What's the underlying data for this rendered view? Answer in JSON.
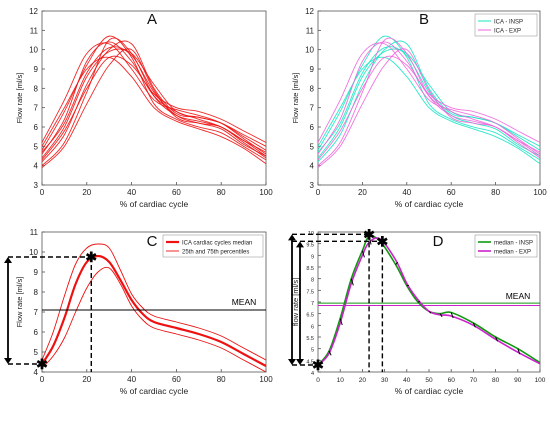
{
  "figure": {
    "panels": [
      {
        "letter": "A"
      },
      {
        "letter": "B"
      },
      {
        "letter": "C"
      },
      {
        "letter": "D"
      }
    ]
  },
  "colors": {
    "red": "#ee1111",
    "cyan": "#18e6c4",
    "magenta": "#ee66dd",
    "green": "#119911",
    "purple": "#cc22cc",
    "axis": "#555555",
    "black": "#000000"
  },
  "chart_data": [
    {
      "panel": "A",
      "type": "line",
      "xlabel": "% of cardiac cycle",
      "ylabel": "Flow rate [ml/s]",
      "xlim": [
        0,
        100
      ],
      "ylim": [
        3,
        12
      ],
      "xticks": [
        0,
        20,
        40,
        60,
        80,
        100
      ],
      "yticks": [
        3,
        4,
        5,
        6,
        7,
        8,
        9,
        10,
        11,
        12
      ],
      "series": [
        {
          "values": [
            4.4,
            6.0,
            8.6,
            9.9,
            9.8,
            8.2,
            6.8,
            6.5,
            6.2,
            5.5,
            4.8
          ]
        },
        {
          "values": [
            4.0,
            5.2,
            7.8,
            10.5,
            9.8,
            7.6,
            6.6,
            6.3,
            6.0,
            5.3,
            4.5
          ]
        },
        {
          "values": [
            4.8,
            6.8,
            9.2,
            10.7,
            9.6,
            7.2,
            6.4,
            6.0,
            5.7,
            5.0,
            4.3
          ]
        },
        {
          "values": [
            5.2,
            7.4,
            9.8,
            10.3,
            9.0,
            7.4,
            6.9,
            6.6,
            6.2,
            5.4,
            4.6
          ]
        },
        {
          "values": [
            4.2,
            5.6,
            8.2,
            10.0,
            10.3,
            8.0,
            6.7,
            6.5,
            6.2,
            5.6,
            5.0
          ]
        },
        {
          "values": [
            3.9,
            5.0,
            7.2,
            9.2,
            10.0,
            7.9,
            6.5,
            6.2,
            6.0,
            5.2,
            4.4
          ]
        },
        {
          "values": [
            5.0,
            7.0,
            9.0,
            9.6,
            8.6,
            7.0,
            6.3,
            5.9,
            5.5,
            4.9,
            4.1
          ]
        },
        {
          "values": [
            4.6,
            6.4,
            9.4,
            10.4,
            9.4,
            7.6,
            6.8,
            6.4,
            6.0,
            5.3,
            4.7
          ]
        },
        {
          "values": [
            4.3,
            5.8,
            8.0,
            9.6,
            9.2,
            7.7,
            7.0,
            6.8,
            6.4,
            5.8,
            5.2
          ]
        },
        {
          "values": [
            4.7,
            6.2,
            8.8,
            10.1,
            9.7,
            7.8,
            6.6,
            6.2,
            5.9,
            5.1,
            4.5
          ]
        }
      ]
    },
    {
      "panel": "B",
      "type": "line",
      "xlabel": "% of cardiac cycle",
      "ylabel": "Flow rate [ml/s]",
      "xlim": [
        0,
        100
      ],
      "ylim": [
        3,
        12
      ],
      "xticks": [
        0,
        20,
        40,
        60,
        80,
        100
      ],
      "yticks": [
        3,
        4,
        5,
        6,
        7,
        8,
        9,
        10,
        11,
        12
      ],
      "legend": {
        "position": "top-right",
        "entries": [
          "ICA - INSP",
          "ICA - EXP"
        ]
      },
      "series": [
        {
          "name": "ICA - INSP",
          "curves": [
            [
              4.4,
              6.0,
              8.6,
              9.9,
              9.8,
              8.2,
              6.8,
              6.5,
              6.2,
              5.5,
              4.8
            ],
            [
              4.8,
              6.8,
              9.2,
              10.7,
              9.6,
              7.2,
              6.4,
              6.0,
              5.7,
              5.0,
              4.3
            ],
            [
              4.2,
              5.6,
              8.2,
              10.0,
              10.3,
              8.0,
              6.7,
              6.5,
              6.2,
              5.6,
              5.0
            ],
            [
              5.0,
              7.0,
              9.0,
              9.6,
              8.6,
              7.0,
              6.3,
              5.9,
              5.5,
              4.9,
              4.1
            ],
            [
              4.7,
              6.2,
              8.8,
              10.1,
              9.7,
              7.8,
              6.6,
              6.2,
              5.9,
              5.1,
              4.5
            ]
          ]
        },
        {
          "name": "ICA - EXP",
          "curves": [
            [
              4.0,
              5.2,
              7.8,
              10.5,
              9.8,
              7.6,
              6.6,
              6.3,
              6.0,
              5.3,
              4.5
            ],
            [
              5.2,
              7.4,
              9.8,
              10.3,
              9.0,
              7.4,
              6.9,
              6.6,
              6.2,
              5.4,
              4.6
            ],
            [
              3.9,
              5.0,
              7.2,
              9.2,
              10.0,
              7.9,
              6.5,
              6.2,
              6.0,
              5.2,
              4.4
            ],
            [
              4.6,
              6.4,
              9.4,
              10.4,
              9.4,
              7.6,
              6.8,
              6.4,
              6.0,
              5.3,
              4.7
            ],
            [
              4.3,
              5.8,
              8.0,
              9.6,
              9.2,
              7.7,
              7.0,
              6.8,
              6.4,
              5.8,
              5.2
            ]
          ]
        }
      ]
    },
    {
      "panel": "C",
      "type": "line",
      "xlabel": "% of cardiac cycle",
      "ylabel": "Flow rate [ml/s]",
      "xlim": [
        0,
        100
      ],
      "ylim": [
        4,
        11
      ],
      "xticks": [
        0,
        20,
        40,
        60,
        80,
        100
      ],
      "yticks": [
        4,
        5,
        6,
        7,
        8,
        9,
        10,
        11
      ],
      "legend": {
        "position": "top-right",
        "entries": [
          "ICA cardiac cycles median",
          "25th and 75th percentiles"
        ]
      },
      "x": [
        0,
        5,
        10,
        15,
        20,
        25,
        30,
        35,
        40,
        45,
        50,
        60,
        70,
        80,
        90,
        100
      ],
      "series": [
        {
          "name": "ICA cardiac cycles median",
          "values": [
            4.4,
            5.3,
            6.7,
            8.4,
            9.5,
            9.8,
            9.5,
            8.6,
            7.6,
            6.9,
            6.5,
            6.2,
            5.9,
            5.5,
            4.9,
            4.3
          ]
        },
        {
          "name": "25th percentile",
          "values": [
            4.2,
            4.8,
            5.7,
            7.0,
            8.2,
            9.0,
            9.2,
            8.4,
            7.3,
            6.6,
            6.2,
            5.9,
            5.6,
            5.2,
            4.6,
            4.0
          ]
        },
        {
          "name": "75th percentile",
          "values": [
            4.6,
            6.0,
            7.8,
            9.4,
            10.2,
            10.4,
            10.2,
            9.1,
            7.9,
            7.2,
            6.8,
            6.5,
            6.2,
            5.8,
            5.2,
            4.6
          ]
        }
      ],
      "annotations": {
        "mean_label": "MEAN",
        "mean_value": 7.1,
        "max_marker": [
          22,
          9.75
        ],
        "min_marker": [
          0,
          4.4
        ]
      }
    },
    {
      "panel": "D",
      "type": "line",
      "xlabel": "% of cardiac cycle",
      "ylabel": "flow rate [ml/s]",
      "xlim": [
        0,
        100
      ],
      "ylim": [
        4,
        10
      ],
      "xticks": [
        0,
        10,
        20,
        30,
        40,
        50,
        60,
        70,
        80,
        90,
        100
      ],
      "yticks": [
        4,
        4.5,
        5,
        5.5,
        6,
        6.5,
        7,
        7.5,
        8,
        8.5,
        9,
        9.5,
        10
      ],
      "legend": {
        "position": "top-right",
        "entries": [
          "median - INSP",
          "median - EXP"
        ]
      },
      "x": [
        0,
        5,
        10,
        15,
        20,
        23,
        28,
        35,
        40,
        45,
        50,
        55,
        60,
        70,
        80,
        90,
        100
      ],
      "series": [
        {
          "name": "median - INSP",
          "values": [
            4.3,
            4.9,
            6.3,
            8.0,
            9.2,
            9.8,
            9.6,
            8.6,
            7.7,
            7.0,
            6.6,
            6.5,
            6.55,
            6.1,
            5.5,
            5.0,
            4.4
          ]
        },
        {
          "name": "median - EXP",
          "values": [
            4.3,
            4.8,
            6.1,
            7.8,
            9.0,
            9.55,
            9.7,
            8.8,
            7.8,
            7.1,
            6.6,
            6.45,
            6.4,
            6.0,
            5.4,
            4.85,
            4.35
          ]
        }
      ],
      "annotations": {
        "mean_label": "MEAN",
        "mean_insp": 6.95,
        "mean_exp": 6.85,
        "max_markers": [
          [
            23,
            9.9
          ],
          [
            29,
            9.6
          ]
        ],
        "min_marker": [
          0,
          4.3
        ]
      }
    }
  ]
}
